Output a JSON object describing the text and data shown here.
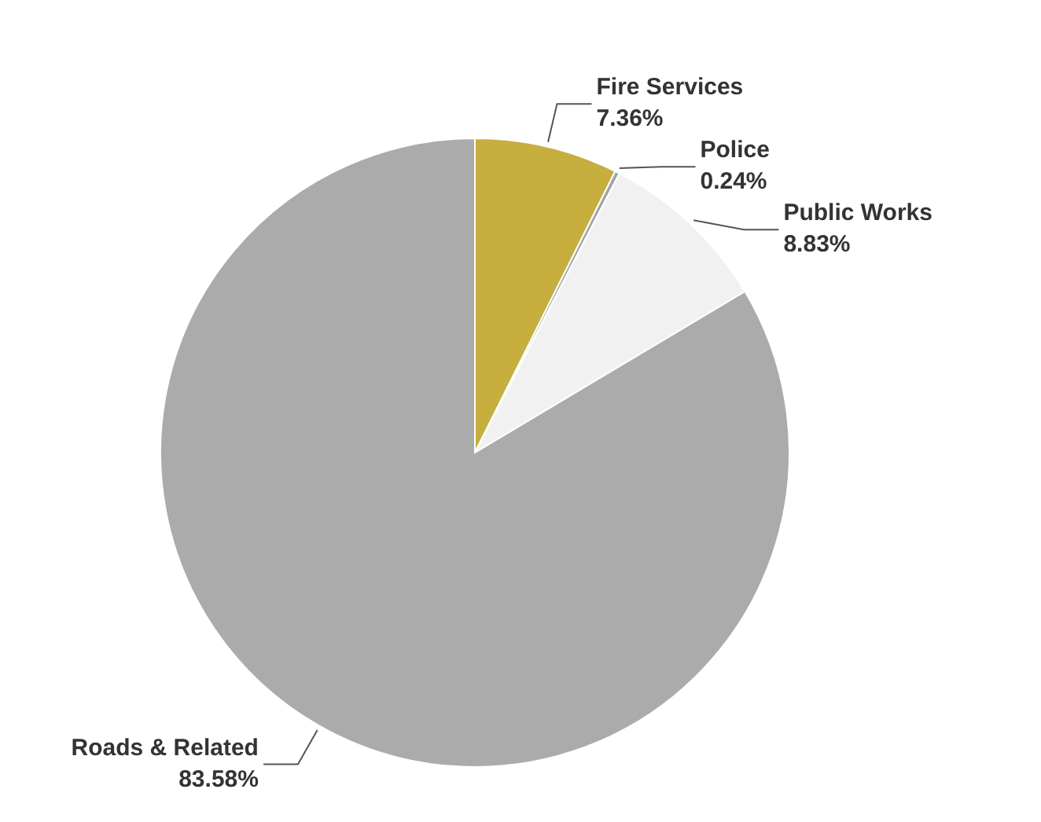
{
  "chart_data": {
    "type": "pie",
    "categories": [
      "Fire Services",
      "Police",
      "Public Works",
      "Roads & Related"
    ],
    "values": [
      7.36,
      0.24,
      8.83,
      83.58
    ],
    "colors": [
      "#c6ae3f",
      "#9fa6a8",
      "#f1f1f1",
      "#ababab"
    ],
    "value_labels": [
      "7.36%",
      "0.24%",
      "8.83%",
      "83.58%"
    ],
    "legend": false
  }
}
